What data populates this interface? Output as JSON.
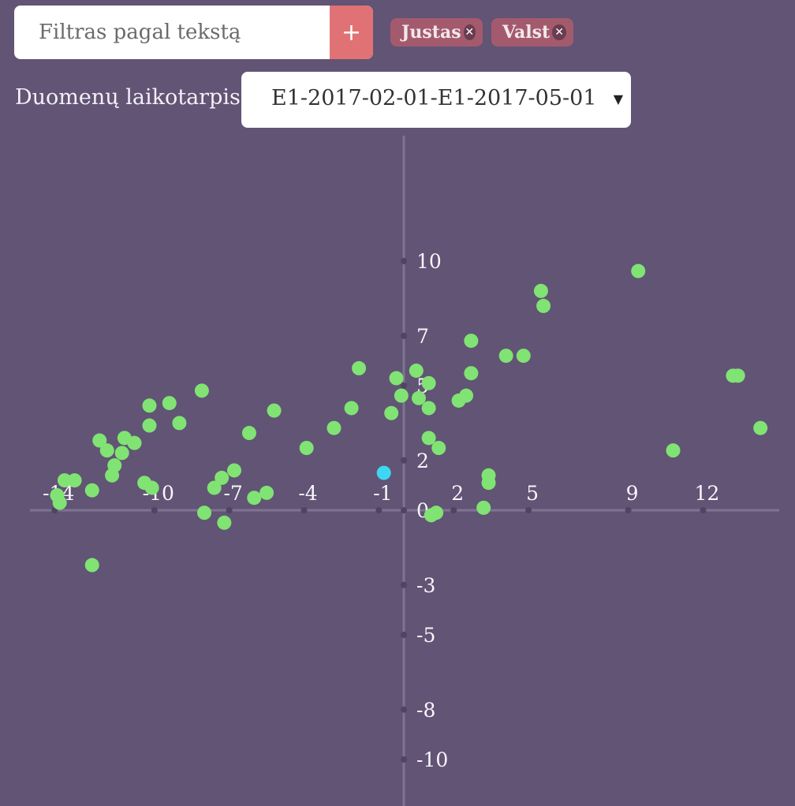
{
  "filter": {
    "placeholder": "Filtras pagal tekstą",
    "value": "",
    "add_label": "+"
  },
  "chips": [
    {
      "label": "Justas"
    },
    {
      "label": "Valst"
    }
  ],
  "period": {
    "label": "Duomenų laikotarpis",
    "selected": "E1-2017-02-01-E1-2017-05-01"
  },
  "colors": {
    "background": "#615475",
    "axis": "#7e7391",
    "point": "#80e373",
    "highlight": "#3fd6f3",
    "add_button": "#e07275",
    "chip": "#a45a6d"
  },
  "chart_data": {
    "type": "scatter",
    "x_ticks": [
      "-14",
      "-10",
      "-7",
      "-4",
      "-1",
      "2",
      "5",
      "9",
      "12"
    ],
    "y_ticks": [
      "10",
      "7",
      "5",
      "2",
      "0",
      "-3",
      "-5",
      "-8",
      "-10"
    ],
    "xlim": [
      -15.1,
      15.2
    ],
    "ylim": [
      -10,
      12.5
    ],
    "points": [
      [
        -12.2,
        2.8
      ],
      [
        -11.9,
        2.4
      ],
      [
        -11.2,
        2.9
      ],
      [
        -11.6,
        1.8
      ],
      [
        -11.3,
        2.3
      ],
      [
        -10.8,
        2.7
      ],
      [
        -10.2,
        3.4
      ],
      [
        -10.2,
        4.2
      ],
      [
        -11.7,
        1.4
      ],
      [
        -10.4,
        1.1
      ],
      [
        -9.4,
        4.3
      ],
      [
        -9.0,
        3.5
      ],
      [
        -8.1,
        4.8
      ],
      [
        -7.3,
        1.3
      ],
      [
        -6.8,
        1.6
      ],
      [
        -7.6,
        0.9
      ],
      [
        -7.2,
        -0.5
      ],
      [
        -8.0,
        -0.1
      ],
      [
        -10.1,
        0.9
      ],
      [
        -13.9,
        0.6
      ],
      [
        -13.8,
        0.3
      ],
      [
        -12.5,
        -2.2
      ],
      [
        -13.6,
        1.2
      ],
      [
        -13.2,
        1.2
      ],
      [
        -12.5,
        0.8
      ],
      [
        -6.2,
        3.1
      ],
      [
        -6.0,
        0.5
      ],
      [
        -5.5,
        0.7
      ],
      [
        -5.2,
        4.0
      ],
      [
        -3.9,
        2.5
      ],
      [
        -2.8,
        3.3
      ],
      [
        -2.1,
        4.1
      ],
      [
        -1.8,
        5.7
      ],
      [
        -0.5,
        3.9
      ],
      [
        -0.3,
        5.3
      ],
      [
        -0.1,
        4.6
      ],
      [
        0.6,
        4.5
      ],
      [
        1.0,
        5.1
      ],
      [
        0.5,
        5.6
      ],
      [
        1.0,
        4.1
      ],
      [
        1.0,
        2.9
      ],
      [
        1.4,
        2.5
      ],
      [
        2.2,
        4.4
      ],
      [
        2.5,
        4.6
      ],
      [
        2.7,
        6.8
      ],
      [
        2.7,
        5.5
      ],
      [
        1.1,
        -0.2
      ],
      [
        1.3,
        -0.1
      ],
      [
        3.2,
        0.1
      ],
      [
        3.4,
        1.4
      ],
      [
        4.1,
        6.2
      ],
      [
        4.8,
        6.2
      ],
      [
        5.6,
        8.2
      ],
      [
        5.5,
        8.8
      ],
      [
        9.4,
        9.6
      ],
      [
        10.8,
        2.4
      ],
      [
        13.2,
        5.4
      ],
      [
        13.4,
        5.4
      ],
      [
        14.3,
        3.3
      ],
      [
        3.4,
        1.1
      ]
    ],
    "highlight_points": [
      [
        -0.8,
        1.5
      ]
    ]
  }
}
